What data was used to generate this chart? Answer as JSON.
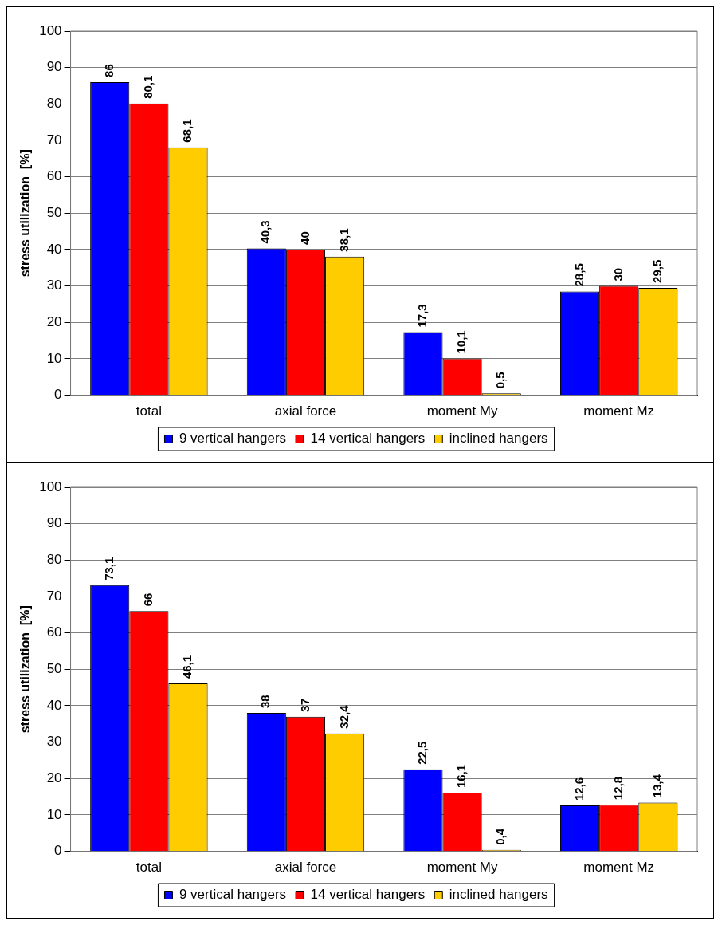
{
  "chart_data": [
    {
      "type": "bar",
      "ylabel": "stress utilization  [%]",
      "categories": [
        "total",
        "axial force",
        "moment My",
        "moment Mz"
      ],
      "series": [
        {
          "name": "9 vertical hangers",
          "color": "#0000ff",
          "values": [
            86,
            40.3,
            17.3,
            28.5
          ],
          "value_labels": [
            "86",
            "40,3",
            "17,3",
            "28,5"
          ]
        },
        {
          "name": "14 vertical hangers",
          "color": "#ff0000",
          "values": [
            80.1,
            40,
            10.1,
            30
          ],
          "value_labels": [
            "80,1",
            "40",
            "10,1",
            "30"
          ]
        },
        {
          "name": "inclined hangers",
          "color": "#ffcc00",
          "values": [
            68.1,
            38.1,
            0.5,
            29.5
          ],
          "value_labels": [
            "68,1",
            "38,1",
            "0,5",
            "29,5"
          ]
        }
      ],
      "ylim": [
        0,
        100
      ],
      "yticks": [
        0,
        10,
        20,
        30,
        40,
        50,
        60,
        70,
        80,
        90,
        100
      ],
      "grid": "y",
      "legend": "bottom"
    },
    {
      "type": "bar",
      "ylabel": "stress utilization  [%]",
      "categories": [
        "total",
        "axial force",
        "moment My",
        "moment Mz"
      ],
      "series": [
        {
          "name": "9 vertical hangers",
          "color": "#0000ff",
          "values": [
            73.1,
            38,
            22.5,
            12.6
          ],
          "value_labels": [
            "73,1",
            "38",
            "22,5",
            "12,6"
          ]
        },
        {
          "name": "14 vertical hangers",
          "color": "#ff0000",
          "values": [
            66,
            37,
            16.1,
            12.8
          ],
          "value_labels": [
            "66",
            "37",
            "16,1",
            "12,8"
          ]
        },
        {
          "name": "inclined hangers",
          "color": "#ffcc00",
          "values": [
            46.1,
            32.4,
            0.4,
            13.4
          ],
          "value_labels": [
            "46,1",
            "32,4",
            "0,4",
            "13,4"
          ]
        }
      ],
      "ylim": [
        0,
        100
      ],
      "yticks": [
        0,
        10,
        20,
        30,
        40,
        50,
        60,
        70,
        80,
        90,
        100
      ],
      "grid": "y",
      "legend": "bottom"
    }
  ]
}
